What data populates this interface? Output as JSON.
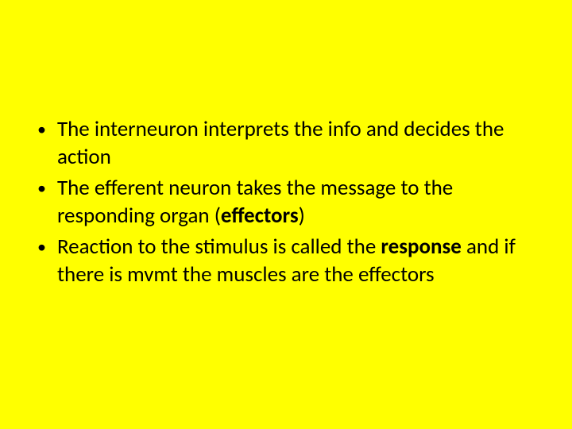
{
  "slide": {
    "background_color": "#ffff00",
    "text_color": "#000000",
    "font_family": "Calibri",
    "font_size": 27,
    "line_height": 35,
    "bullets": [
      {
        "segments": [
          {
            "text": "The interneuron interprets the info and decides the action",
            "bold": false
          }
        ]
      },
      {
        "segments": [
          {
            "text": "The efferent neuron takes the message to the responding organ (",
            "bold": false
          },
          {
            "text": "effectors",
            "bold": true
          },
          {
            "text": ")",
            "bold": false
          }
        ]
      },
      {
        "segments": [
          {
            "text": "Reaction to the stimulus is called the ",
            "bold": false
          },
          {
            "text": "response",
            "bold": true
          },
          {
            "text": " and if there is mvmt the muscles are the effectors",
            "bold": false
          }
        ]
      }
    ]
  }
}
